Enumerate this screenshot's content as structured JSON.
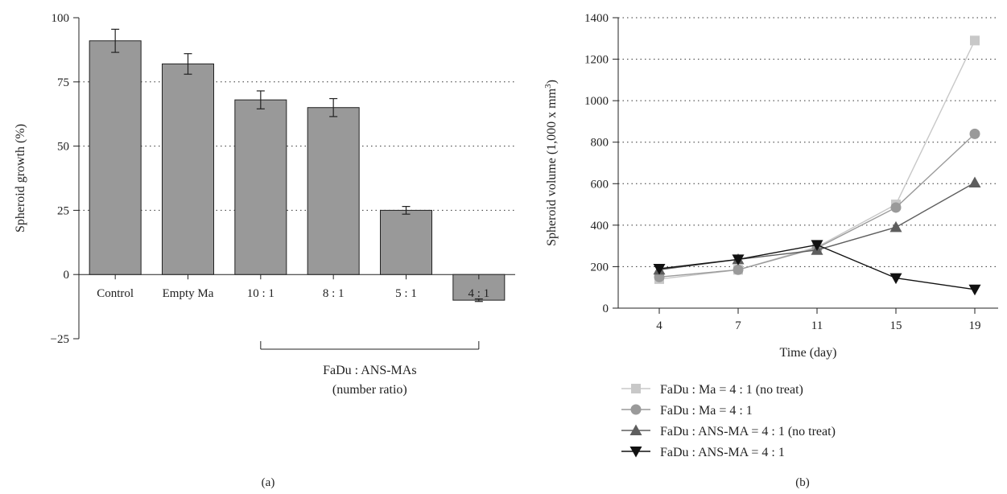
{
  "chart_data": [
    {
      "type": "bar",
      "panel_label": "(a)",
      "ylabel": "Spheroid growth (%)",
      "ylim": [
        -25,
        100
      ],
      "yticks": [
        100,
        75,
        50,
        25,
        0,
        -25
      ],
      "yticks_text": [
        "100",
        "75",
        "50",
        "25",
        "0",
        "−25"
      ],
      "grid": "dotted at 25, 50, 75",
      "categories": [
        "Control",
        "Empty Ma",
        "10 : 1",
        "8 : 1",
        "5 : 1",
        "4 : 1"
      ],
      "values": [
        91,
        82,
        68,
        65,
        25,
        -10
      ],
      "errors": [
        4.5,
        4,
        3.5,
        3.5,
        1.5,
        0.5
      ],
      "bar_color": "#999999",
      "group_bracket": {
        "from_category": "10 : 1",
        "to_category": "4 : 1",
        "label_line1": "FaDu : ANS-MAs",
        "label_line2": "(number ratio)"
      }
    },
    {
      "type": "line",
      "panel_label": "(b)",
      "xlabel": "Time (day)",
      "ylabel_main": "Spheroid volume (1,000 x mm",
      "ylabel_sup": "3",
      "ylabel_tail": ")",
      "x": [
        4,
        7,
        11,
        15,
        19
      ],
      "xticks_text": [
        "4",
        "7",
        "11",
        "15",
        "19"
      ],
      "ylim": [
        0,
        1400
      ],
      "yticks": [
        0,
        200,
        400,
        600,
        800,
        1000,
        1200,
        1400
      ],
      "grid": "dotted horizontal",
      "legend_position": "bottom",
      "series": [
        {
          "name": "FaDu : Ma = 4 : 1 (no treat)",
          "values": [
            140,
            185,
            295,
            500,
            1290
          ],
          "color": "#c8c8c8",
          "marker": "square"
        },
        {
          "name": "FaDu : Ma = 4 : 1",
          "values": [
            150,
            185,
            290,
            485,
            840
          ],
          "color": "#9a9a9a",
          "marker": "circle"
        },
        {
          "name": "FaDu : ANS-MA = 4 : 1 (no treat)",
          "values": [
            185,
            235,
            280,
            390,
            605
          ],
          "color": "#5e5e5e",
          "marker": "triangle-up"
        },
        {
          "name": "FaDu : ANS-MA = 4 : 1",
          "values": [
            190,
            235,
            305,
            145,
            90
          ],
          "color": "#111111",
          "marker": "triangle-down"
        }
      ]
    }
  ]
}
